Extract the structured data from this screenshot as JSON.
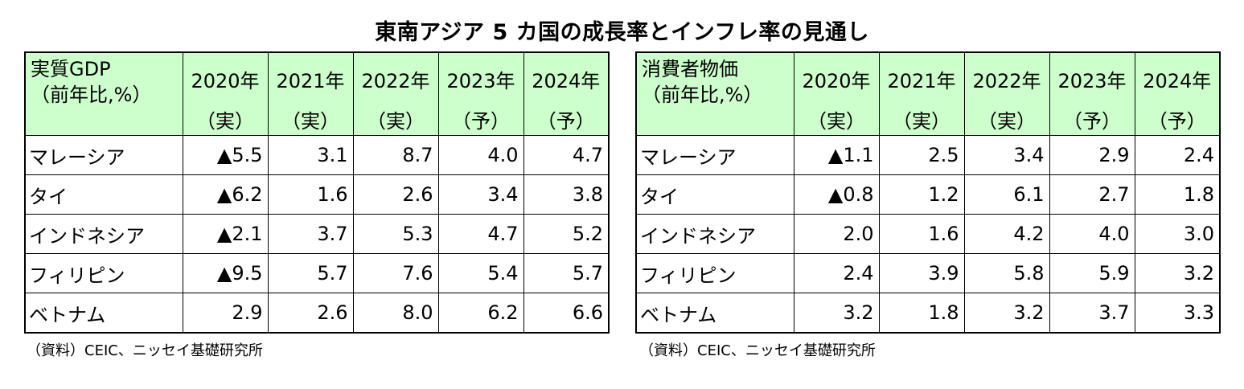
{
  "title": "東南アジア 5 カ国の成長率とインフレ率の見通し",
  "gdp_table": {
    "corner_line1": "実質GDP",
    "corner_line2": "（前年比,%）",
    "columns": [
      {
        "year": "2020年",
        "kind": "（実）"
      },
      {
        "year": "2021年",
        "kind": "（実）"
      },
      {
        "year": "2022年",
        "kind": "（実）"
      },
      {
        "year": "2023年",
        "kind": "（予）"
      },
      {
        "year": "2024年",
        "kind": "（予）"
      }
    ],
    "rows": [
      {
        "country": "マレーシア",
        "values": [
          "▲5.5",
          "3.1",
          "8.7",
          "4.0",
          "4.7"
        ]
      },
      {
        "country": "タイ",
        "values": [
          "▲6.2",
          "1.6",
          "2.6",
          "3.4",
          "3.8"
        ]
      },
      {
        "country": "インドネシア",
        "values": [
          "▲2.1",
          "3.7",
          "5.3",
          "4.7",
          "5.2"
        ]
      },
      {
        "country": "フィリピン",
        "values": [
          "▲9.5",
          "5.7",
          "7.6",
          "5.4",
          "5.7"
        ]
      },
      {
        "country": "ベトナム",
        "values": [
          "2.9",
          "2.6",
          "8.0",
          "6.2",
          "6.6"
        ]
      }
    ],
    "source": "（資料）CEIC、ニッセイ基礎研究所"
  },
  "cpi_table": {
    "corner_line1": "消費者物価",
    "corner_line2": "（前年比,%）",
    "columns": [
      {
        "year": "2020年",
        "kind": "（実）"
      },
      {
        "year": "2021年",
        "kind": "（実）"
      },
      {
        "year": "2022年",
        "kind": "（実）"
      },
      {
        "year": "2023年",
        "kind": "（予）"
      },
      {
        "year": "2024年",
        "kind": "（予）"
      }
    ],
    "rows": [
      {
        "country": "マレーシア",
        "values": [
          "▲1.1",
          "2.5",
          "3.4",
          "2.9",
          "2.4"
        ]
      },
      {
        "country": "タイ",
        "values": [
          "▲0.8",
          "1.2",
          "6.1",
          "2.7",
          "1.8"
        ]
      },
      {
        "country": "インドネシア",
        "values": [
          "2.0",
          "1.6",
          "4.2",
          "4.0",
          "3.0"
        ]
      },
      {
        "country": "フィリピン",
        "values": [
          "2.4",
          "3.9",
          "5.8",
          "5.9",
          "3.2"
        ]
      },
      {
        "country": "ベトナム",
        "values": [
          "3.2",
          "1.8",
          "3.2",
          "3.7",
          "3.3"
        ]
      }
    ],
    "source": "（資料）CEIC、ニッセイ基礎研究所"
  },
  "colors": {
    "header_bg": "#ccffcc",
    "border": "#000000"
  }
}
